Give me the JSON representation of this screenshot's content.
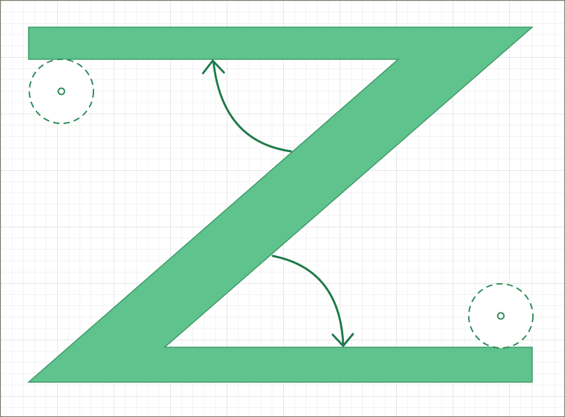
{
  "figure": {
    "shape": "letter-z",
    "colors": {
      "background": "#ffffff",
      "grid_minor": "#e6e6e6",
      "grid_major": "#cfcfcf",
      "border": "#6d7a63",
      "shape_fill": "#5fc38d",
      "shape_stroke": "#3f9a68",
      "annotation": "#1f7a4b"
    },
    "annotations": {
      "arrows": [
        "arc-arrow-upper",
        "arc-arrow-lower"
      ],
      "corner_markers": [
        "dashed-circle-top-left",
        "dashed-circle-bottom-right"
      ]
    }
  }
}
